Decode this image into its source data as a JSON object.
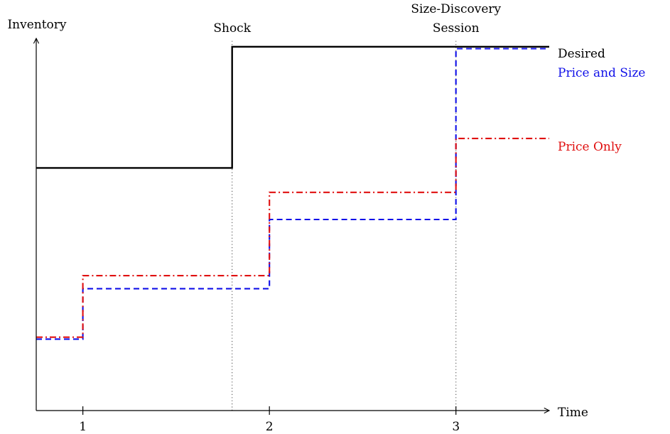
{
  "chart_data": {
    "type": "line",
    "step": true,
    "xlabel": "Time",
    "ylabel": "Inventory",
    "xlim": [
      0.75,
      3.5
    ],
    "ylim": [
      0,
      10
    ],
    "xticks": [
      {
        "value": 1,
        "label": "1"
      },
      {
        "value": 2,
        "label": "2"
      },
      {
        "value": 3,
        "label": "3"
      }
    ],
    "grid": false,
    "y_tick_labels": false,
    "vlines": [
      {
        "x": 1.8,
        "label": [
          "Shock"
        ],
        "style": "dotted"
      },
      {
        "x": 3.0,
        "label": [
          "Size-Discovery",
          "Session"
        ],
        "style": "dotted"
      }
    ],
    "series": [
      {
        "name": "Desired",
        "color": "#000000",
        "style": "solid",
        "x": [
          0.75,
          1.8,
          1.8,
          3.5
        ],
        "y": [
          6.35,
          6.35,
          9.52,
          9.52
        ]
      },
      {
        "name": "Price and Size",
        "color": "#1010e8",
        "style": "dashed",
        "x": [
          0.75,
          1.0,
          1.0,
          2.0,
          2.0,
          3.0,
          3.0,
          3.5
        ],
        "y": [
          1.87,
          1.87,
          3.19,
          3.19,
          5.0,
          5.0,
          9.47,
          9.47
        ]
      },
      {
        "name": "Price Only",
        "color": "#e01010",
        "style": "dashdot",
        "x": [
          0.75,
          1.0,
          1.0,
          2.0,
          2.0,
          3.0,
          3.0,
          3.5
        ],
        "y": [
          1.92,
          1.92,
          3.53,
          3.53,
          5.71,
          5.71,
          7.12,
          7.12
        ]
      }
    ]
  }
}
